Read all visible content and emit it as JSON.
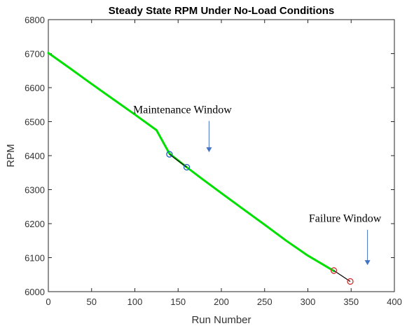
{
  "chart_data": {
    "type": "line",
    "title": "Steady State RPM Under No-Load Conditions",
    "xlabel": "Run Number",
    "ylabel": "RPM",
    "xlim": [
      0,
      400
    ],
    "ylim": [
      6000,
      6800
    ],
    "xticks": [
      "0",
      "50",
      "100",
      "150",
      "200",
      "250",
      "300",
      "350",
      "400"
    ],
    "yticks": [
      "6000",
      "6100",
      "6200",
      "6300",
      "6400",
      "6500",
      "6600",
      "6700",
      "6800"
    ],
    "grid": false,
    "line_color": "#00e000",
    "series": [
      {
        "x": [
          0,
          25,
          50,
          75,
          100,
          125,
          140,
          160,
          175,
          200,
          225,
          250,
          275,
          300,
          330
        ],
        "y": [
          6702,
          6657,
          6611,
          6566,
          6521,
          6475,
          6406,
          6366,
          6337,
          6290,
          6243,
          6197,
          6150,
          6106,
          6061
        ]
      }
    ],
    "markers": [
      {
        "x": 140,
        "y": 6404,
        "color": "#1f5fbf"
      },
      {
        "x": 160,
        "y": 6366,
        "color": "#1f5fbf"
      },
      {
        "x": 330,
        "y": 6062,
        "color": "#d03030"
      },
      {
        "x": 349,
        "y": 6030,
        "color": "#d03030"
      }
    ],
    "annotations": [
      {
        "text": "Maintenance Window",
        "x": 155,
        "y": 6500,
        "arrow_to_y": 6410,
        "arrow_color": "#4472c4"
      },
      {
        "text": "Failure Window",
        "x": 343,
        "y": 6180,
        "arrow_to_y": 6078,
        "arrow_color": "#4472c4"
      }
    ]
  }
}
